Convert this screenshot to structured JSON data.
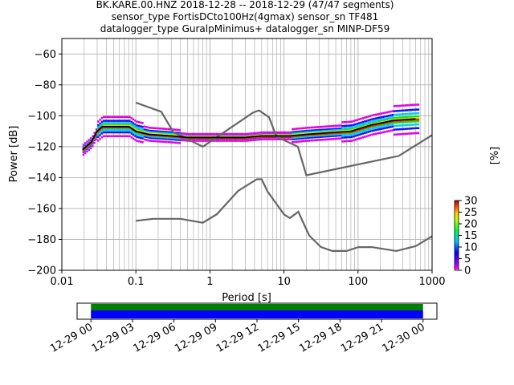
{
  "figure": {
    "title_lines": [
      "BK.KARE.00.HNZ   2018-12-28 -- 2018-12-29  (47/47 segments)",
      "sensor_type FortisDCto100Hz(4gmax) sensor_sn TF481",
      "datalogger_type GuralpMinimus+ datalogger_sn MINP-DF59"
    ]
  },
  "chart_data": [
    {
      "type": "heatmap",
      "subtype": "probabilistic-power-spectral-density",
      "xlabel": "Period [s]",
      "ylabel": "Power [dB]",
      "xscale": "log",
      "xlim": [
        0.01,
        1000
      ],
      "ylim": [
        -200,
        -50
      ],
      "xticks": [
        0.01,
        0.1,
        1,
        10,
        100,
        1000
      ],
      "xtick_labels": [
        "0.01",
        "0.1",
        "1",
        "10",
        "100",
        "1000"
      ],
      "yticks": [
        -200,
        -180,
        -160,
        -140,
        -120,
        -100,
        -80,
        -60
      ],
      "ytick_labels": [
        "−200",
        "−180",
        "−160",
        "−140",
        "−120",
        "−100",
        "−80",
        "−60"
      ],
      "grid": true,
      "mode_curve": {
        "period": [
          0.019,
          0.025,
          0.03,
          0.035,
          0.05,
          0.08,
          0.1,
          0.15,
          0.3,
          0.5,
          1,
          3,
          5,
          8,
          12,
          20,
          40,
          80,
          150,
          300,
          600
        ],
        "power": [
          -122,
          -117,
          -110,
          -107,
          -107,
          -107,
          -110,
          -112,
          -113,
          -114,
          -114,
          -114,
          -113,
          -113,
          -113,
          -112,
          -111,
          -110,
          -106,
          -103,
          -102
        ]
      },
      "nhnm": {
        "period": [
          0.1,
          0.22,
          0.32,
          0.8,
          3.8,
          4.6,
          6.3,
          7.9,
          15.4,
          20,
          354.8,
          1000
        ],
        "power": [
          -91.5,
          -97.4,
          -110.5,
          -120,
          -98,
          -96.5,
          -101,
          -113.5,
          -120,
          -138.5,
          -126,
          -112.5
        ]
      },
      "nlnm": {
        "period": [
          0.1,
          0.17,
          0.4,
          0.8,
          1.24,
          2.4,
          4.3,
          5,
          6,
          10,
          12,
          15.6,
          21.9,
          31.6,
          45,
          70,
          101,
          154,
          328,
          600,
          1000
        ],
        "power": [
          -168,
          -166.7,
          -166.7,
          -169.2,
          -163.7,
          -148.6,
          -141.1,
          -141.1,
          -149,
          -163.8,
          -166.2,
          -162.1,
          -177.5,
          -185,
          -187.5,
          -187.5,
          -185,
          -185,
          -187.5,
          -184.4,
          -178
        ]
      },
      "density_colors": [
        "#e000e0",
        "#1010f0",
        "#00c8ff",
        "#10e010",
        "#f0f000",
        "#ff2000"
      ]
    },
    {
      "type": "colorbar",
      "label": "[%]",
      "range": [
        0,
        30
      ],
      "ticks": [
        0,
        5,
        10,
        15,
        20,
        25,
        30
      ],
      "tick_labels": [
        "0",
        "5",
        "10",
        "15",
        "20",
        "25",
        "30"
      ]
    },
    {
      "type": "timeline",
      "tick_labels": [
        "12-29 00",
        "12-29 03",
        "12-29 06",
        "12-29 09",
        "12-29 12",
        "12-29 15",
        "12-29 18",
        "12-29 21",
        "12-30 00"
      ],
      "range_hours": [
        -1.0,
        25.0
      ],
      "coverage_hours": [
        0,
        24
      ],
      "bar_colors": [
        "#008000",
        "#0000ff"
      ]
    }
  ]
}
